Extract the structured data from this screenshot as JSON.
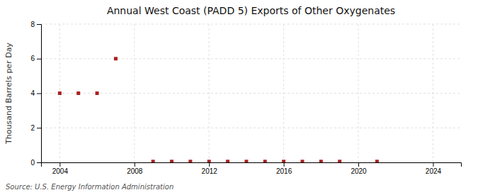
{
  "chart_data": {
    "type": "scatter",
    "title": "Annual West Coast (PADD 5) Exports of Other Oxygenates",
    "y_label": "Thousand Barrels per Day",
    "annotations": [
      "Source: U.S. Energy Information Administration"
    ],
    "x": [
      2004,
      2005,
      2006,
      2007,
      2009,
      2010,
      2011,
      2012,
      2013,
      2014,
      2015,
      2016,
      2017,
      2018,
      2019,
      2021
    ],
    "values": [
      4.0,
      4.0,
      4.0,
      6.0,
      0.05,
      0.05,
      0.05,
      0.05,
      0.05,
      0.05,
      0.05,
      0.05,
      0.05,
      0.05,
      0.05,
      0.05
    ],
    "color": "#aa2222",
    "marker": "square",
    "xlim": [
      2003.0,
      2025.5
    ],
    "ylim": [
      0,
      8
    ],
    "xticks": [
      2004,
      2008,
      2012,
      2016,
      2020,
      2024
    ],
    "yticks": [
      0,
      2,
      4,
      6,
      8
    ],
    "grid": true
  }
}
